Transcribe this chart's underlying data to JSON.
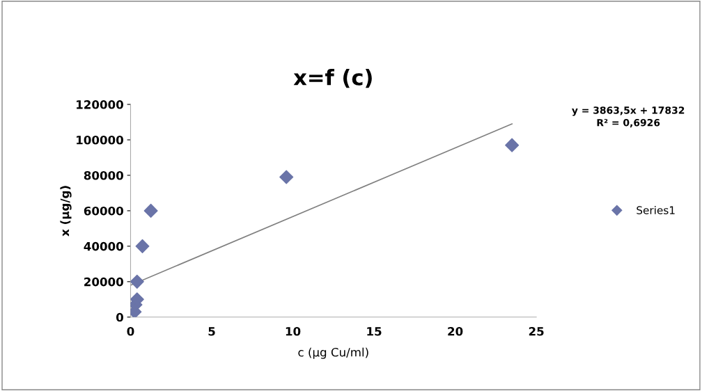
{
  "chart_data": {
    "type": "scatter",
    "title": "x=f (c)",
    "xlabel": "c (µg Cu/ml)",
    "ylabel": "x (µg/g)",
    "annotations": [
      "y = 3863,5x + 17832\nR² = 0,6926"
    ],
    "series": [
      {
        "name": "Series1",
        "color": "#6a74a8",
        "marker": "diamond",
        "x": [
          0.25,
          0.3,
          0.4,
          0.4,
          0.73,
          1.25,
          9.6,
          23.5
        ],
        "values": [
          3000,
          7000,
          10000,
          20000,
          40000,
          60000,
          79000,
          97000
        ]
      },
      {
        "type": "line",
        "color": "#808080",
        "x": [
          0,
          23.5
        ],
        "values": [
          18000,
          109000
        ]
      }
    ],
    "xlim": [
      0,
      25
    ],
    "xticks": [
      0,
      5,
      10,
      15,
      20,
      25
    ],
    "ylim": [
      0,
      120000
    ],
    "yticks": [
      0,
      20000,
      40000,
      60000,
      80000,
      100000,
      120000
    ],
    "grid": false,
    "legend": "right"
  }
}
